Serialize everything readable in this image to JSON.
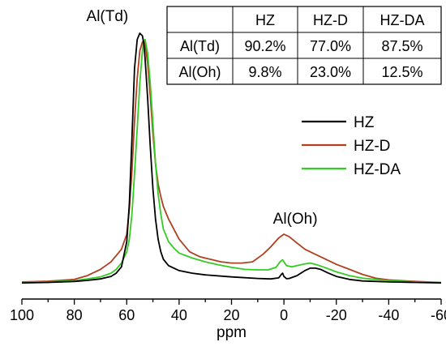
{
  "chart_data": {
    "type": "line",
    "xlabel": "ppm",
    "ylabel": "",
    "xlim": [
      100,
      -60
    ],
    "x_reversed": true,
    "x_ticks": [
      "100",
      "80",
      "60",
      "40",
      "20",
      "0",
      "-20",
      "-40",
      "-60"
    ],
    "grid": false,
    "legend_position": "right",
    "annotations": [
      {
        "text": "Al(Td)",
        "x": 55
      },
      {
        "text": "Al(Oh)",
        "x": 0
      }
    ],
    "series": [
      {
        "name": "HZ",
        "color": "#000000",
        "points": [
          [
            100,
            0.006
          ],
          [
            90,
            0.008
          ],
          [
            80,
            0.012
          ],
          [
            75,
            0.016
          ],
          [
            70,
            0.022
          ],
          [
            66,
            0.032
          ],
          [
            64,
            0.045
          ],
          [
            62,
            0.07
          ],
          [
            60,
            0.17
          ],
          [
            59,
            0.32
          ],
          [
            58,
            0.58
          ],
          [
            57,
            0.86
          ],
          [
            56,
            0.975
          ],
          [
            55,
            1.0
          ],
          [
            54,
            0.99
          ],
          [
            53.5,
            0.96
          ],
          [
            53,
            0.9
          ],
          [
            52,
            0.74
          ],
          [
            51,
            0.55
          ],
          [
            50,
            0.38
          ],
          [
            49,
            0.26
          ],
          [
            48,
            0.18
          ],
          [
            47,
            0.13
          ],
          [
            46,
            0.1
          ],
          [
            44,
            0.075
          ],
          [
            40,
            0.055
          ],
          [
            35,
            0.045
          ],
          [
            30,
            0.038
          ],
          [
            20,
            0.03
          ],
          [
            10,
            0.024
          ],
          [
            5,
            0.022
          ],
          [
            2,
            0.026
          ],
          [
            1,
            0.04
          ],
          [
            0.5,
            0.045
          ],
          [
            0,
            0.032
          ],
          [
            -1,
            0.023
          ],
          [
            -2,
            0.024
          ],
          [
            -5,
            0.035
          ],
          [
            -8,
            0.055
          ],
          [
            -10,
            0.065
          ],
          [
            -12,
            0.065
          ],
          [
            -14,
            0.06
          ],
          [
            -17,
            0.045
          ],
          [
            -20,
            0.032
          ],
          [
            -25,
            0.02
          ],
          [
            -30,
            0.014
          ],
          [
            -40,
            0.01
          ],
          [
            -50,
            0.008
          ],
          [
            -60,
            0.006
          ]
        ]
      },
      {
        "name": "HZ-D",
        "color": "#b04020",
        "points": [
          [
            100,
            0.01
          ],
          [
            90,
            0.013
          ],
          [
            80,
            0.02
          ],
          [
            75,
            0.035
          ],
          [
            70,
            0.06
          ],
          [
            66,
            0.09
          ],
          [
            64,
            0.115
          ],
          [
            62,
            0.14
          ],
          [
            60,
            0.2
          ],
          [
            59,
            0.3
          ],
          [
            58,
            0.45
          ],
          [
            57,
            0.65
          ],
          [
            56,
            0.82
          ],
          [
            55,
            0.93
          ],
          [
            54,
            0.965
          ],
          [
            53.5,
            0.97
          ],
          [
            53,
            0.955
          ],
          [
            52,
            0.88
          ],
          [
            51,
            0.75
          ],
          [
            50,
            0.6
          ],
          [
            49,
            0.48
          ],
          [
            48,
            0.4
          ],
          [
            47,
            0.35
          ],
          [
            46,
            0.31
          ],
          [
            44,
            0.26
          ],
          [
            42,
            0.22
          ],
          [
            40,
            0.18
          ],
          [
            36,
            0.13
          ],
          [
            32,
            0.11
          ],
          [
            28,
            0.1
          ],
          [
            24,
            0.09
          ],
          [
            20,
            0.085
          ],
          [
            16,
            0.085
          ],
          [
            12,
            0.09
          ],
          [
            8,
            0.12
          ],
          [
            5,
            0.15
          ],
          [
            2,
            0.185
          ],
          [
            0,
            0.2
          ],
          [
            -2,
            0.19
          ],
          [
            -5,
            0.165
          ],
          [
            -8,
            0.14
          ],
          [
            -10,
            0.13
          ],
          [
            -12,
            0.12
          ],
          [
            -15,
            0.105
          ],
          [
            -20,
            0.08
          ],
          [
            -25,
            0.06
          ],
          [
            -30,
            0.04
          ],
          [
            -35,
            0.025
          ],
          [
            -40,
            0.018
          ],
          [
            -50,
            0.012
          ],
          [
            -60,
            0.008
          ]
        ]
      },
      {
        "name": "HZ-DA",
        "color": "#33cc22",
        "points": [
          [
            100,
            0.008
          ],
          [
            90,
            0.01
          ],
          [
            80,
            0.015
          ],
          [
            75,
            0.022
          ],
          [
            70,
            0.03
          ],
          [
            66,
            0.045
          ],
          [
            64,
            0.06
          ],
          [
            62,
            0.085
          ],
          [
            60,
            0.13
          ],
          [
            59,
            0.18
          ],
          [
            58,
            0.28
          ],
          [
            57,
            0.44
          ],
          [
            56,
            0.62
          ],
          [
            55,
            0.8
          ],
          [
            54,
            0.93
          ],
          [
            53.5,
            0.97
          ],
          [
            53,
            0.975
          ],
          [
            52,
            0.92
          ],
          [
            51,
            0.8
          ],
          [
            50,
            0.64
          ],
          [
            49,
            0.48
          ],
          [
            48,
            0.36
          ],
          [
            47,
            0.28
          ],
          [
            46,
            0.22
          ],
          [
            44,
            0.17
          ],
          [
            42,
            0.145
          ],
          [
            40,
            0.125
          ],
          [
            35,
            0.105
          ],
          [
            30,
            0.09
          ],
          [
            25,
            0.078
          ],
          [
            20,
            0.068
          ],
          [
            15,
            0.06
          ],
          [
            10,
            0.058
          ],
          [
            6,
            0.058
          ],
          [
            3,
            0.068
          ],
          [
            1.5,
            0.09
          ],
          [
            0.5,
            0.098
          ],
          [
            0,
            0.09
          ],
          [
            -1,
            0.075
          ],
          [
            -3,
            0.07
          ],
          [
            -5,
            0.075
          ],
          [
            -8,
            0.082
          ],
          [
            -10,
            0.085
          ],
          [
            -12,
            0.08
          ],
          [
            -15,
            0.07
          ],
          [
            -20,
            0.05
          ],
          [
            -25,
            0.035
          ],
          [
            -30,
            0.025
          ],
          [
            -40,
            0.015
          ],
          [
            -50,
            0.01
          ],
          [
            -60,
            0.007
          ]
        ]
      }
    ],
    "table": {
      "columns": [
        "",
        "HZ",
        "HZ-D",
        "HZ-DA"
      ],
      "rows": [
        [
          "Al(Td)",
          "90.2%",
          "77.0%",
          "87.5%"
        ],
        [
          "Al(Oh)",
          "9.8%",
          "23.0%",
          "12.5%"
        ]
      ]
    }
  }
}
